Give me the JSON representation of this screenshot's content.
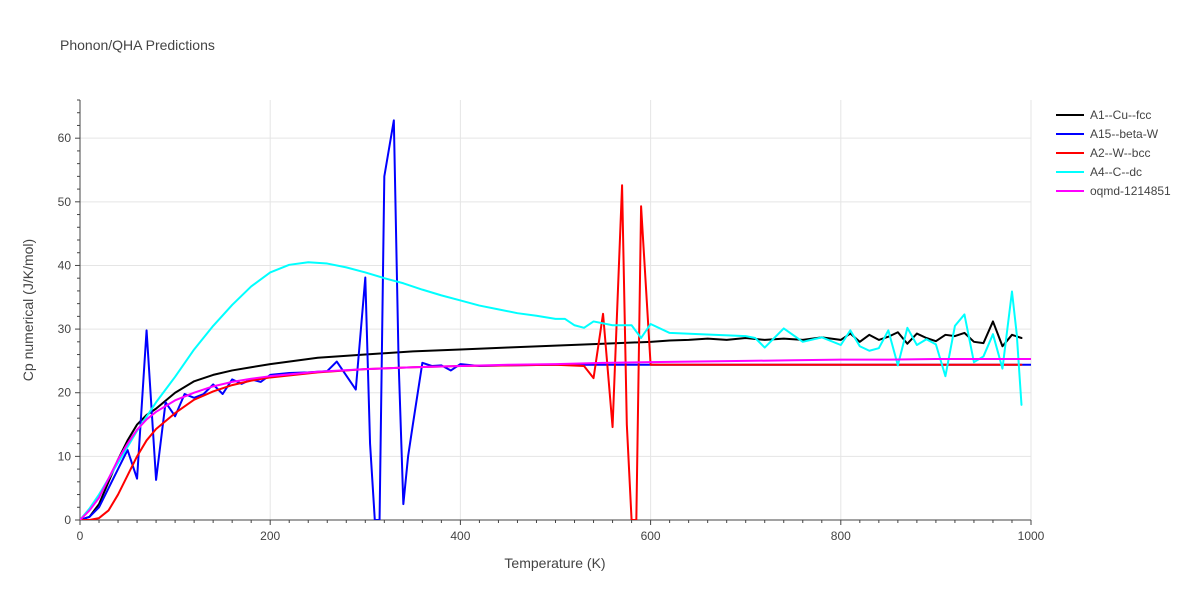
{
  "chart_data": {
    "type": "line",
    "title": "Phonon/QHA Predictions",
    "xlabel": "Temperature (K)",
    "ylabel": "Cp numerical (J/K/mol)",
    "xlim": [
      0,
      1000
    ],
    "ylim": [
      0,
      66
    ],
    "xticks": [
      0,
      200,
      400,
      600,
      800,
      1000
    ],
    "yticks": [
      0,
      10,
      20,
      30,
      40,
      50,
      60
    ],
    "grid": true,
    "legend": "right",
    "series": [
      {
        "name": "A1--Cu--fcc",
        "color": "#000000",
        "x": [
          0,
          10,
          20,
          30,
          40,
          50,
          60,
          70,
          80,
          100,
          120,
          140,
          160,
          180,
          200,
          250,
          300,
          350,
          400,
          450,
          500,
          550,
          600,
          620,
          640,
          660,
          680,
          700,
          720,
          740,
          760,
          780,
          800,
          810,
          820,
          830,
          840,
          850,
          860,
          870,
          880,
          890,
          900,
          910,
          920,
          930,
          940,
          950,
          960,
          970,
          980,
          990
        ],
        "values": [
          0,
          0.5,
          2.5,
          6,
          9.5,
          12.5,
          15,
          16.5,
          17.5,
          20,
          21.8,
          22.8,
          23.5,
          24,
          24.5,
          25.5,
          26,
          26.5,
          26.8,
          27.1,
          27.4,
          27.7,
          28,
          28.2,
          28.3,
          28.5,
          28.3,
          28.6,
          28.3,
          28.5,
          28.3,
          28.7,
          28.3,
          29.3,
          28,
          29.1,
          28.3,
          28.8,
          29.5,
          27.7,
          29.3,
          28.6,
          28.1,
          29.1,
          28.9,
          29.4,
          28,
          27.8,
          31.2,
          27.3,
          29.1,
          28.6
        ]
      },
      {
        "name": "A15--beta-W",
        "color": "#0000ff",
        "x": [
          0,
          10,
          20,
          30,
          40,
          50,
          60,
          70,
          80,
          90,
          100,
          110,
          120,
          130,
          140,
          150,
          160,
          170,
          180,
          190,
          200,
          220,
          240,
          260,
          270,
          290,
          300,
          305,
          310,
          315,
          320,
          330,
          335,
          340,
          345,
          350,
          360,
          370,
          380,
          390,
          400,
          420,
          450,
          500,
          550,
          600,
          650,
          700,
          800,
          900,
          1000
        ],
        "values": [
          0,
          0.5,
          2,
          5,
          8,
          11,
          6.5,
          29.8,
          6.3,
          18.5,
          16.3,
          19.8,
          19.2,
          19.8,
          21.3,
          19.8,
          22.1,
          21.4,
          22.1,
          21.7,
          22.8,
          23.1,
          23.2,
          23.4,
          24.9,
          20.5,
          38.1,
          12,
          0,
          0,
          54,
          62.8,
          25,
          2.5,
          10,
          15,
          24.7,
          24.2,
          24.3,
          23.5,
          24.5,
          24.2,
          24.3,
          24.4,
          24.4,
          24.4,
          24.4,
          24.4,
          24.4,
          24.4,
          24.4
        ]
      },
      {
        "name": "A2--W--bcc",
        "color": "#ff0000",
        "x": [
          0,
          10,
          20,
          30,
          40,
          50,
          60,
          70,
          80,
          100,
          120,
          140,
          160,
          180,
          200,
          250,
          300,
          350,
          400,
          450,
          500,
          530,
          540,
          550,
          560,
          570,
          575,
          580,
          585,
          590,
          600,
          620,
          650,
          700,
          800,
          900,
          990
        ],
        "values": [
          0,
          0,
          0.3,
          1.5,
          4,
          7,
          10,
          12.5,
          14.3,
          16.8,
          18.9,
          20.2,
          21.2,
          21.9,
          22.4,
          23.2,
          23.7,
          24,
          24.2,
          24.3,
          24.4,
          24.2,
          22.3,
          32.4,
          14.6,
          52.6,
          15,
          0,
          0,
          49.3,
          24.4,
          24.4,
          24.4,
          24.4,
          24.4,
          24.4,
          24.4
        ]
      },
      {
        "name": "A4--C--dc",
        "color": "#00ffff",
        "x": [
          0,
          10,
          20,
          40,
          60,
          80,
          100,
          120,
          140,
          160,
          180,
          200,
          220,
          240,
          260,
          280,
          300,
          320,
          340,
          360,
          380,
          400,
          420,
          440,
          460,
          480,
          500,
          510,
          520,
          530,
          540,
          560,
          580,
          590,
          600,
          620,
          650,
          700,
          710,
          720,
          740,
          760,
          780,
          800,
          810,
          820,
          830,
          840,
          850,
          860,
          870,
          880,
          890,
          900,
          910,
          920,
          930,
          940,
          950,
          960,
          970,
          980,
          985,
          990
        ],
        "values": [
          0,
          1.8,
          4,
          9,
          14,
          18.5,
          22.5,
          26.8,
          30.5,
          33.8,
          36.7,
          38.9,
          40.1,
          40.5,
          40.3,
          39.7,
          38.9,
          38,
          37.2,
          36.2,
          35.3,
          34.5,
          33.7,
          33.1,
          32.5,
          32.1,
          31.6,
          31.6,
          30.6,
          30.2,
          31.2,
          30.6,
          30.6,
          28.6,
          30.8,
          29.4,
          29.2,
          28.9,
          28.6,
          27.1,
          30.1,
          28,
          28.7,
          27.5,
          29.8,
          27.3,
          26.6,
          27,
          29.8,
          24.3,
          30.2,
          27.5,
          28.4,
          27.6,
          22.6,
          30.5,
          32.3,
          24.8,
          25.7,
          29.2,
          23.8,
          35.9,
          29.2,
          18.1
        ]
      },
      {
        "name": "oqmd-1214851",
        "color": "#ff00ff",
        "x": [
          0,
          10,
          20,
          30,
          40,
          50,
          60,
          70,
          80,
          100,
          120,
          140,
          160,
          180,
          200,
          250,
          300,
          350,
          400,
          450,
          500,
          550,
          600,
          650,
          700,
          750,
          800,
          850,
          900,
          950,
          1000
        ],
        "values": [
          0,
          1.5,
          3.5,
          6.5,
          9.5,
          12,
          14.2,
          15.8,
          17,
          18.8,
          20,
          21,
          21.7,
          22.2,
          22.6,
          23.3,
          23.7,
          24,
          24.2,
          24.4,
          24.5,
          24.7,
          24.8,
          24.9,
          25,
          25.1,
          25.2,
          25.2,
          25.3,
          25.3,
          25.3
        ]
      }
    ]
  }
}
